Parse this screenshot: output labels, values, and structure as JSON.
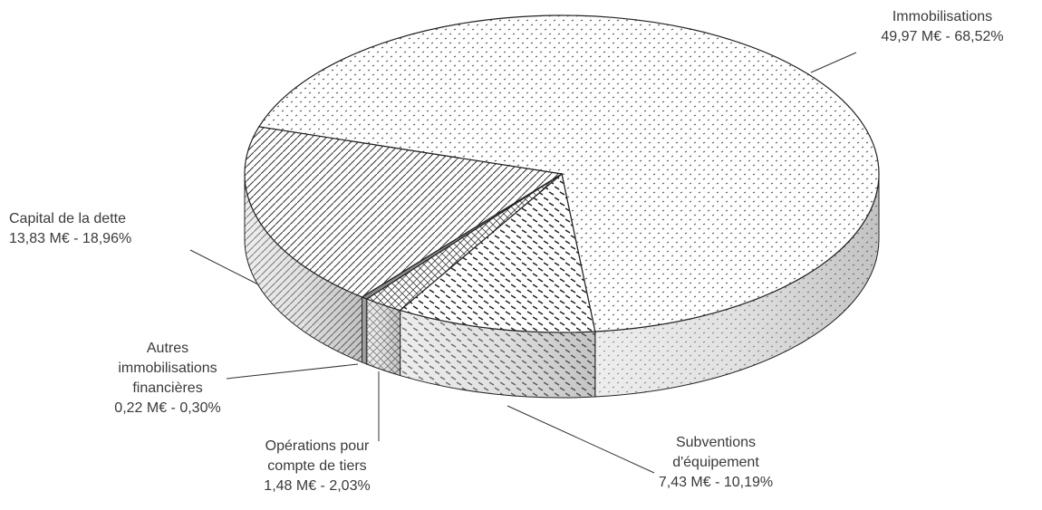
{
  "chart_data": {
    "type": "pie3d",
    "categories": [
      "Immobilisations",
      "Subventions d'équipement",
      "Opérations pour compte de tiers",
      "Autres immobilisations financières",
      "Capital de la dette"
    ],
    "values": [
      49.97,
      7.43,
      1.48,
      0.22,
      13.83
    ],
    "value_labels": [
      "49,97 M€ - 68,52%",
      "7,43 M€ - 10,19%",
      "1,48 M€ - 2,03%",
      "0,22 M€ - 0,30%",
      "13,83 M€ - 18,96%"
    ]
  }
}
